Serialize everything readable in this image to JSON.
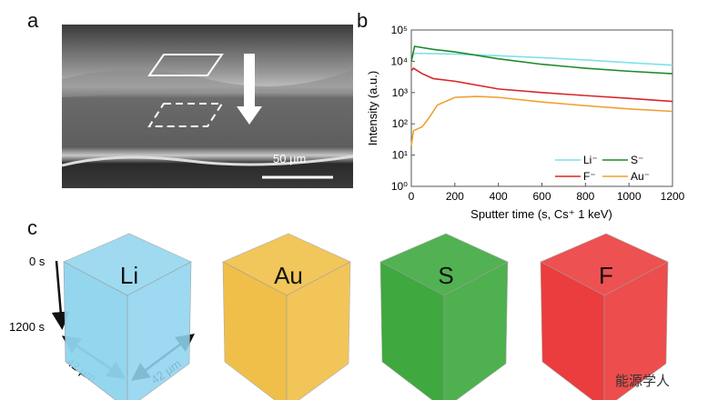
{
  "panels": {
    "a": "a",
    "b": "b",
    "c": "c"
  },
  "sem": {
    "scale_bar": "50 µm"
  },
  "chart_data": {
    "type": "line",
    "xlabel": "Sputter time (s, Cs⁺ 1 keV)",
    "ylabel": "Intensity (a.u.)",
    "xlim": [
      0,
      1200
    ],
    "ylim": [
      1,
      100000
    ],
    "yscale": "log",
    "xticks": [
      "0",
      "200",
      "400",
      "600",
      "800",
      "1000",
      "1200"
    ],
    "yticks": [
      "10⁰",
      "10¹",
      "10²",
      "10³",
      "10⁴",
      "10⁵"
    ],
    "grid": false,
    "legend_position": "bottom-right",
    "series": [
      {
        "name": "Li⁻",
        "color": "#7fe0e6",
        "x": [
          0,
          10,
          200,
          400,
          600,
          800,
          1000,
          1200
        ],
        "y": [
          10000,
          18000,
          17000,
          15000,
          13000,
          11000,
          9000,
          7500
        ]
      },
      {
        "name": "S⁻",
        "color": "#1f8a2a",
        "x": [
          0,
          15,
          100,
          200,
          400,
          600,
          800,
          1000,
          1200
        ],
        "y": [
          10000,
          30000,
          24000,
          20000,
          12000,
          8000,
          6000,
          4800,
          4000
        ]
      },
      {
        "name": "F⁻",
        "color": "#d9262b",
        "x": [
          0,
          10,
          50,
          100,
          200,
          400,
          600,
          800,
          1000,
          1200
        ],
        "y": [
          5000,
          6000,
          4000,
          2800,
          2300,
          1300,
          1000,
          800,
          650,
          520
        ]
      },
      {
        "name": "Au⁻",
        "color": "#f0a030",
        "x": [
          0,
          10,
          50,
          80,
          120,
          200,
          300,
          400,
          600,
          800,
          1000,
          1200
        ],
        "y": [
          20,
          60,
          80,
          150,
          400,
          700,
          750,
          700,
          500,
          380,
          300,
          250
        ]
      }
    ]
  },
  "cubes": {
    "time_start": "0 s",
    "time_end": "1200 s",
    "width_label": "42 µm",
    "depth_label": "42 µm",
    "items": [
      {
        "label": "Li",
        "color": "#8fd4ee"
      },
      {
        "label": "Au",
        "color": "#eeb52a"
      },
      {
        "label": "S",
        "color": "#1e9a1e"
      },
      {
        "label": "F",
        "color": "#e81c1c"
      }
    ]
  },
  "watermark": "能源学人"
}
